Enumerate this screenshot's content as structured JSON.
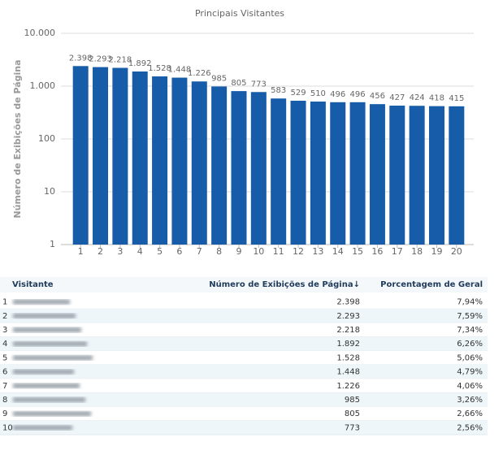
{
  "chart_data": {
    "type": "bar",
    "title": "Principais Visitantes",
    "y_label": "Número de Exibições de Página",
    "categories": [
      "1",
      "2",
      "3",
      "4",
      "5",
      "6",
      "7",
      "8",
      "9",
      "10",
      "11",
      "12",
      "13",
      "14",
      "15",
      "16",
      "17",
      "18",
      "19",
      "20"
    ],
    "values": [
      2398,
      2293,
      2218,
      1892,
      1528,
      1448,
      1226,
      985,
      805,
      773,
      583,
      529,
      510,
      496,
      496,
      456,
      427,
      424,
      418,
      415
    ],
    "value_labels": [
      "2.398",
      "2.293",
      "2.218",
      "1.892",
      "1.528",
      "1.448",
      "1.226",
      "985",
      "805",
      "773",
      "583",
      "529",
      "510",
      "496",
      "496",
      "456",
      "427",
      "424",
      "418",
      "415"
    ],
    "color": "#165ca9",
    "log_scale": true,
    "grid": true,
    "ylim": [
      1,
      10000
    ],
    "yticks": [
      1,
      10,
      100,
      {
        "value": 1000,
        "label": "1.000"
      },
      {
        "value": 10000,
        "label": "10.000"
      }
    ]
  },
  "table": {
    "headers": [
      "Visitante",
      "Número de Exibições de Página↓",
      "Porcentagem de Geral"
    ],
    "rows": [
      [
        "1",
        "2.398",
        "7,94%"
      ],
      [
        "2",
        "2.293",
        "7,59%"
      ],
      [
        "3",
        "2.218",
        "7,34%"
      ],
      [
        "4",
        "1.892",
        "6,26%"
      ],
      [
        "5",
        "1.528",
        "5,06%"
      ],
      [
        "6",
        "1.448",
        "4,79%"
      ],
      [
        "7",
        "1.226",
        "4,06%"
      ],
      [
        "8",
        "985",
        "3,26%"
      ],
      [
        "9",
        "805",
        "2,66%"
      ],
      [
        "10",
        "773",
        "2,56%"
      ]
    ]
  }
}
